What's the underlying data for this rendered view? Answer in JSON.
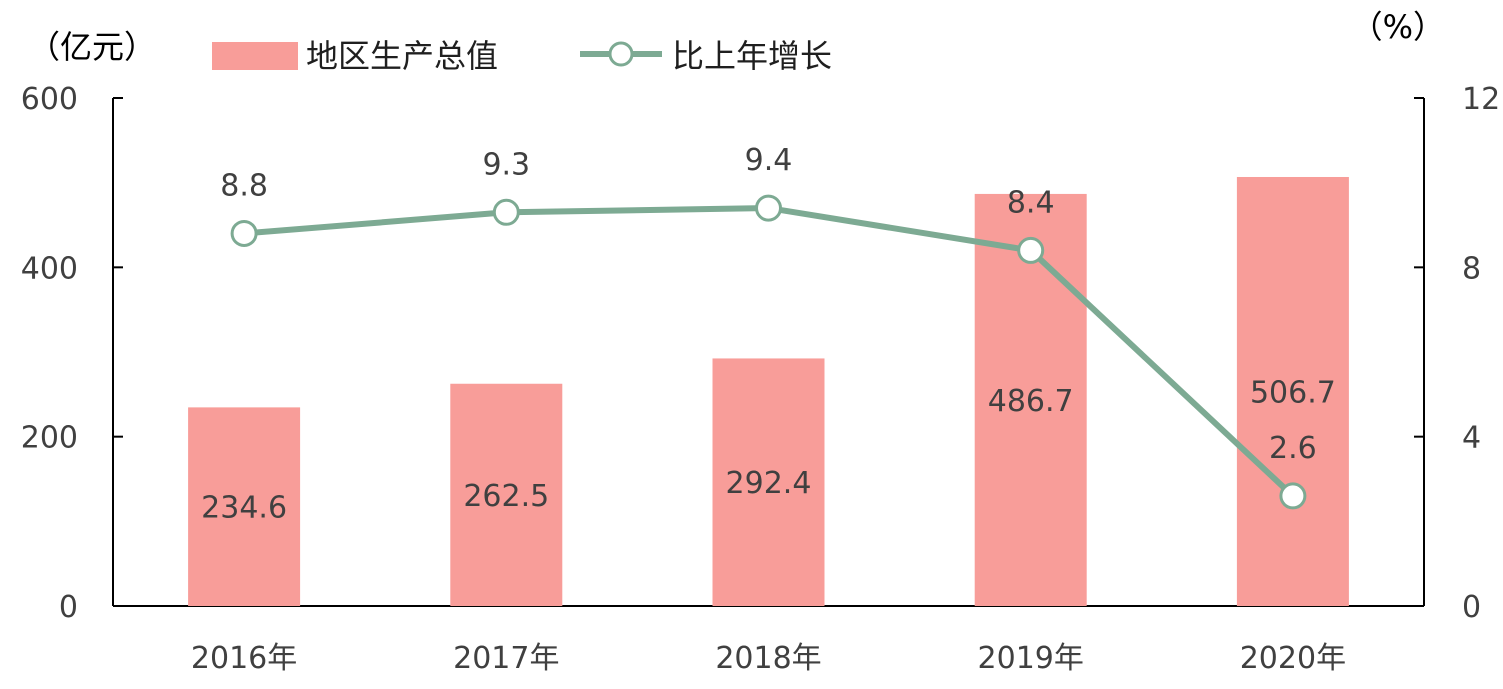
{
  "chart_data": {
    "type": "bar+line",
    "categories": [
      "2016年",
      "2017年",
      "2018年",
      "2019年",
      "2020年"
    ],
    "series": [
      {
        "name": "地区生产总值",
        "type": "bar",
        "axis": "left",
        "values": [
          234.6,
          262.5,
          292.4,
          486.7,
          506.7
        ],
        "labels": [
          "234.6",
          "262.5",
          "292.4",
          "486.7",
          "506.7"
        ],
        "color": "#f89d99"
      },
      {
        "name": "比上年增长",
        "type": "line",
        "axis": "right",
        "values": [
          8.8,
          9.3,
          9.4,
          8.4,
          2.6
        ],
        "labels": [
          "8.8",
          "9.3",
          "9.4",
          "8.4",
          "2.6"
        ],
        "color": "#7daa93"
      }
    ],
    "left_axis": {
      "unit": "（亿元）",
      "min": 0,
      "max": 600,
      "ticks": [
        "0",
        "200",
        "400",
        "600"
      ]
    },
    "right_axis": {
      "unit": "（%）",
      "min": 0,
      "max": 12,
      "ticks": [
        "0",
        "4",
        "8",
        "12"
      ]
    },
    "grid": false,
    "legend_position": "top"
  }
}
